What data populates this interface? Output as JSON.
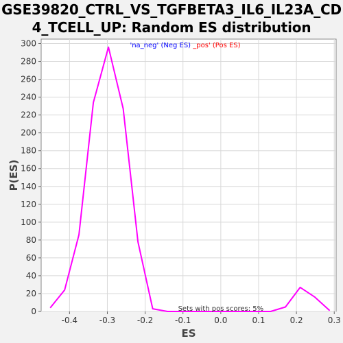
{
  "page": {
    "title_line1": "GSE39820_CTRL_VS_TGFBETA3_IL6_IL23A_CD",
    "title_line2": "4_TCELL_UP: Random ES distribution"
  },
  "chart_data": {
    "type": "line",
    "title": "GSE39820_CTRL_VS_TGFBETA3_IL6_IL23A_CD4_TCELL_UP: Random ES distribution",
    "xlabel": "ES",
    "ylabel": "P(ES)",
    "xlim": [
      -0.475,
      0.305
    ],
    "ylim": [
      0,
      305
    ],
    "x_ticks": [
      -0.4,
      -0.3,
      -0.2,
      -0.1,
      0.0,
      0.1,
      0.2,
      0.3
    ],
    "x_tick_labels": [
      "-0.4",
      "-0.3",
      "-0.2",
      "-0.1",
      "0.0",
      "0.1",
      "0.2",
      "0.3"
    ],
    "y_ticks": [
      0,
      20,
      40,
      60,
      80,
      100,
      120,
      140,
      160,
      180,
      200,
      220,
      240,
      260,
      280,
      300
    ],
    "grid": true,
    "legend": {
      "placement": "top-center",
      "neg_label": "'na_neg' (Neg ES)",
      "pos_label": "_pos' (Pos ES)",
      "neg_color": "#0000ff",
      "pos_color": "#ff0000"
    },
    "annotation": "Sets with pos scores: 5%",
    "series": [
      {
        "color": "#ff00ff",
        "x": [
          -0.451,
          -0.413,
          -0.375,
          -0.337,
          -0.297,
          -0.258,
          -0.219,
          -0.18,
          -0.141,
          -0.102,
          -0.063,
          -0.024,
          0.015,
          0.054,
          0.093,
          0.132,
          0.171,
          0.21,
          0.249,
          0.288
        ],
        "y": [
          4,
          24,
          86,
          234,
          296,
          227,
          78,
          3,
          0,
          0,
          0,
          0,
          0,
          0,
          0,
          0,
          5,
          27,
          16,
          1
        ]
      }
    ]
  }
}
